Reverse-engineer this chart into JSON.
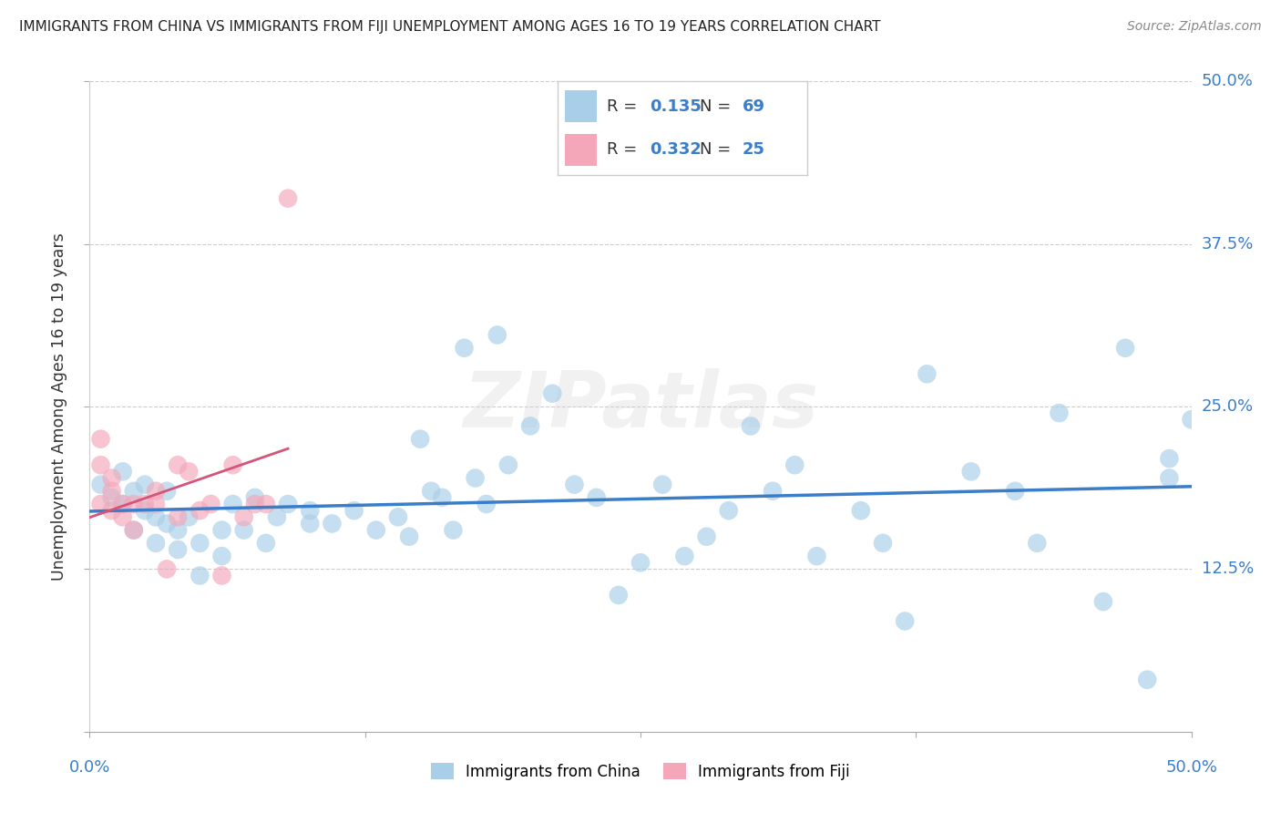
{
  "title": "IMMIGRANTS FROM CHINA VS IMMIGRANTS FROM FIJI UNEMPLOYMENT AMONG AGES 16 TO 19 YEARS CORRELATION CHART",
  "source": "Source: ZipAtlas.com",
  "ylabel": "Unemployment Among Ages 16 to 19 years",
  "xlim": [
    0.0,
    0.5
  ],
  "ylim": [
    0.0,
    0.5
  ],
  "ytick_vals": [
    0.0,
    0.125,
    0.25,
    0.375,
    0.5
  ],
  "ytick_labels_right": [
    "",
    "12.5%",
    "25.0%",
    "37.5%",
    "50.0%"
  ],
  "xtick_bottom_left": "0.0%",
  "xtick_bottom_right": "50.0%",
  "color_china": "#A8CEE8",
  "color_fiji": "#F4A7B9",
  "trendline_china_color": "#3A7DC9",
  "trendline_fiji_color": "#D4547A",
  "r1": "0.135",
  "n1": "69",
  "r2": "0.332",
  "n2": "25",
  "label_china": "Immigrants from China",
  "label_fiji": "Immigrants from Fiji",
  "watermark": "ZIPatlas",
  "china_x": [
    0.005,
    0.01,
    0.015,
    0.015,
    0.02,
    0.02,
    0.025,
    0.025,
    0.03,
    0.03,
    0.035,
    0.035,
    0.04,
    0.04,
    0.045,
    0.05,
    0.05,
    0.06,
    0.06,
    0.065,
    0.07,
    0.075,
    0.08,
    0.085,
    0.09,
    0.1,
    0.1,
    0.11,
    0.12,
    0.13,
    0.14,
    0.145,
    0.15,
    0.155,
    0.16,
    0.165,
    0.17,
    0.175,
    0.18,
    0.185,
    0.19,
    0.2,
    0.21,
    0.22,
    0.23,
    0.24,
    0.25,
    0.26,
    0.27,
    0.28,
    0.29,
    0.3,
    0.31,
    0.32,
    0.33,
    0.35,
    0.36,
    0.37,
    0.38,
    0.4,
    0.42,
    0.43,
    0.44,
    0.46,
    0.47,
    0.48,
    0.49,
    0.49,
    0.5
  ],
  "china_y": [
    0.19,
    0.18,
    0.175,
    0.2,
    0.155,
    0.185,
    0.17,
    0.19,
    0.165,
    0.145,
    0.16,
    0.185,
    0.155,
    0.14,
    0.165,
    0.12,
    0.145,
    0.135,
    0.155,
    0.175,
    0.155,
    0.18,
    0.145,
    0.165,
    0.175,
    0.17,
    0.16,
    0.16,
    0.17,
    0.155,
    0.165,
    0.15,
    0.225,
    0.185,
    0.18,
    0.155,
    0.295,
    0.195,
    0.175,
    0.305,
    0.205,
    0.235,
    0.26,
    0.19,
    0.18,
    0.105,
    0.13,
    0.19,
    0.135,
    0.15,
    0.17,
    0.235,
    0.185,
    0.205,
    0.135,
    0.17,
    0.145,
    0.085,
    0.275,
    0.2,
    0.185,
    0.145,
    0.245,
    0.1,
    0.295,
    0.04,
    0.21,
    0.195,
    0.24
  ],
  "fiji_x": [
    0.005,
    0.005,
    0.005,
    0.01,
    0.01,
    0.01,
    0.015,
    0.015,
    0.02,
    0.02,
    0.025,
    0.03,
    0.03,
    0.035,
    0.04,
    0.04,
    0.045,
    0.05,
    0.055,
    0.06,
    0.065,
    0.07,
    0.075,
    0.08,
    0.09
  ],
  "fiji_y": [
    0.175,
    0.205,
    0.225,
    0.17,
    0.185,
    0.195,
    0.175,
    0.165,
    0.175,
    0.155,
    0.175,
    0.185,
    0.175,
    0.125,
    0.165,
    0.205,
    0.2,
    0.17,
    0.175,
    0.12,
    0.205,
    0.165,
    0.175,
    0.175,
    0.41
  ]
}
